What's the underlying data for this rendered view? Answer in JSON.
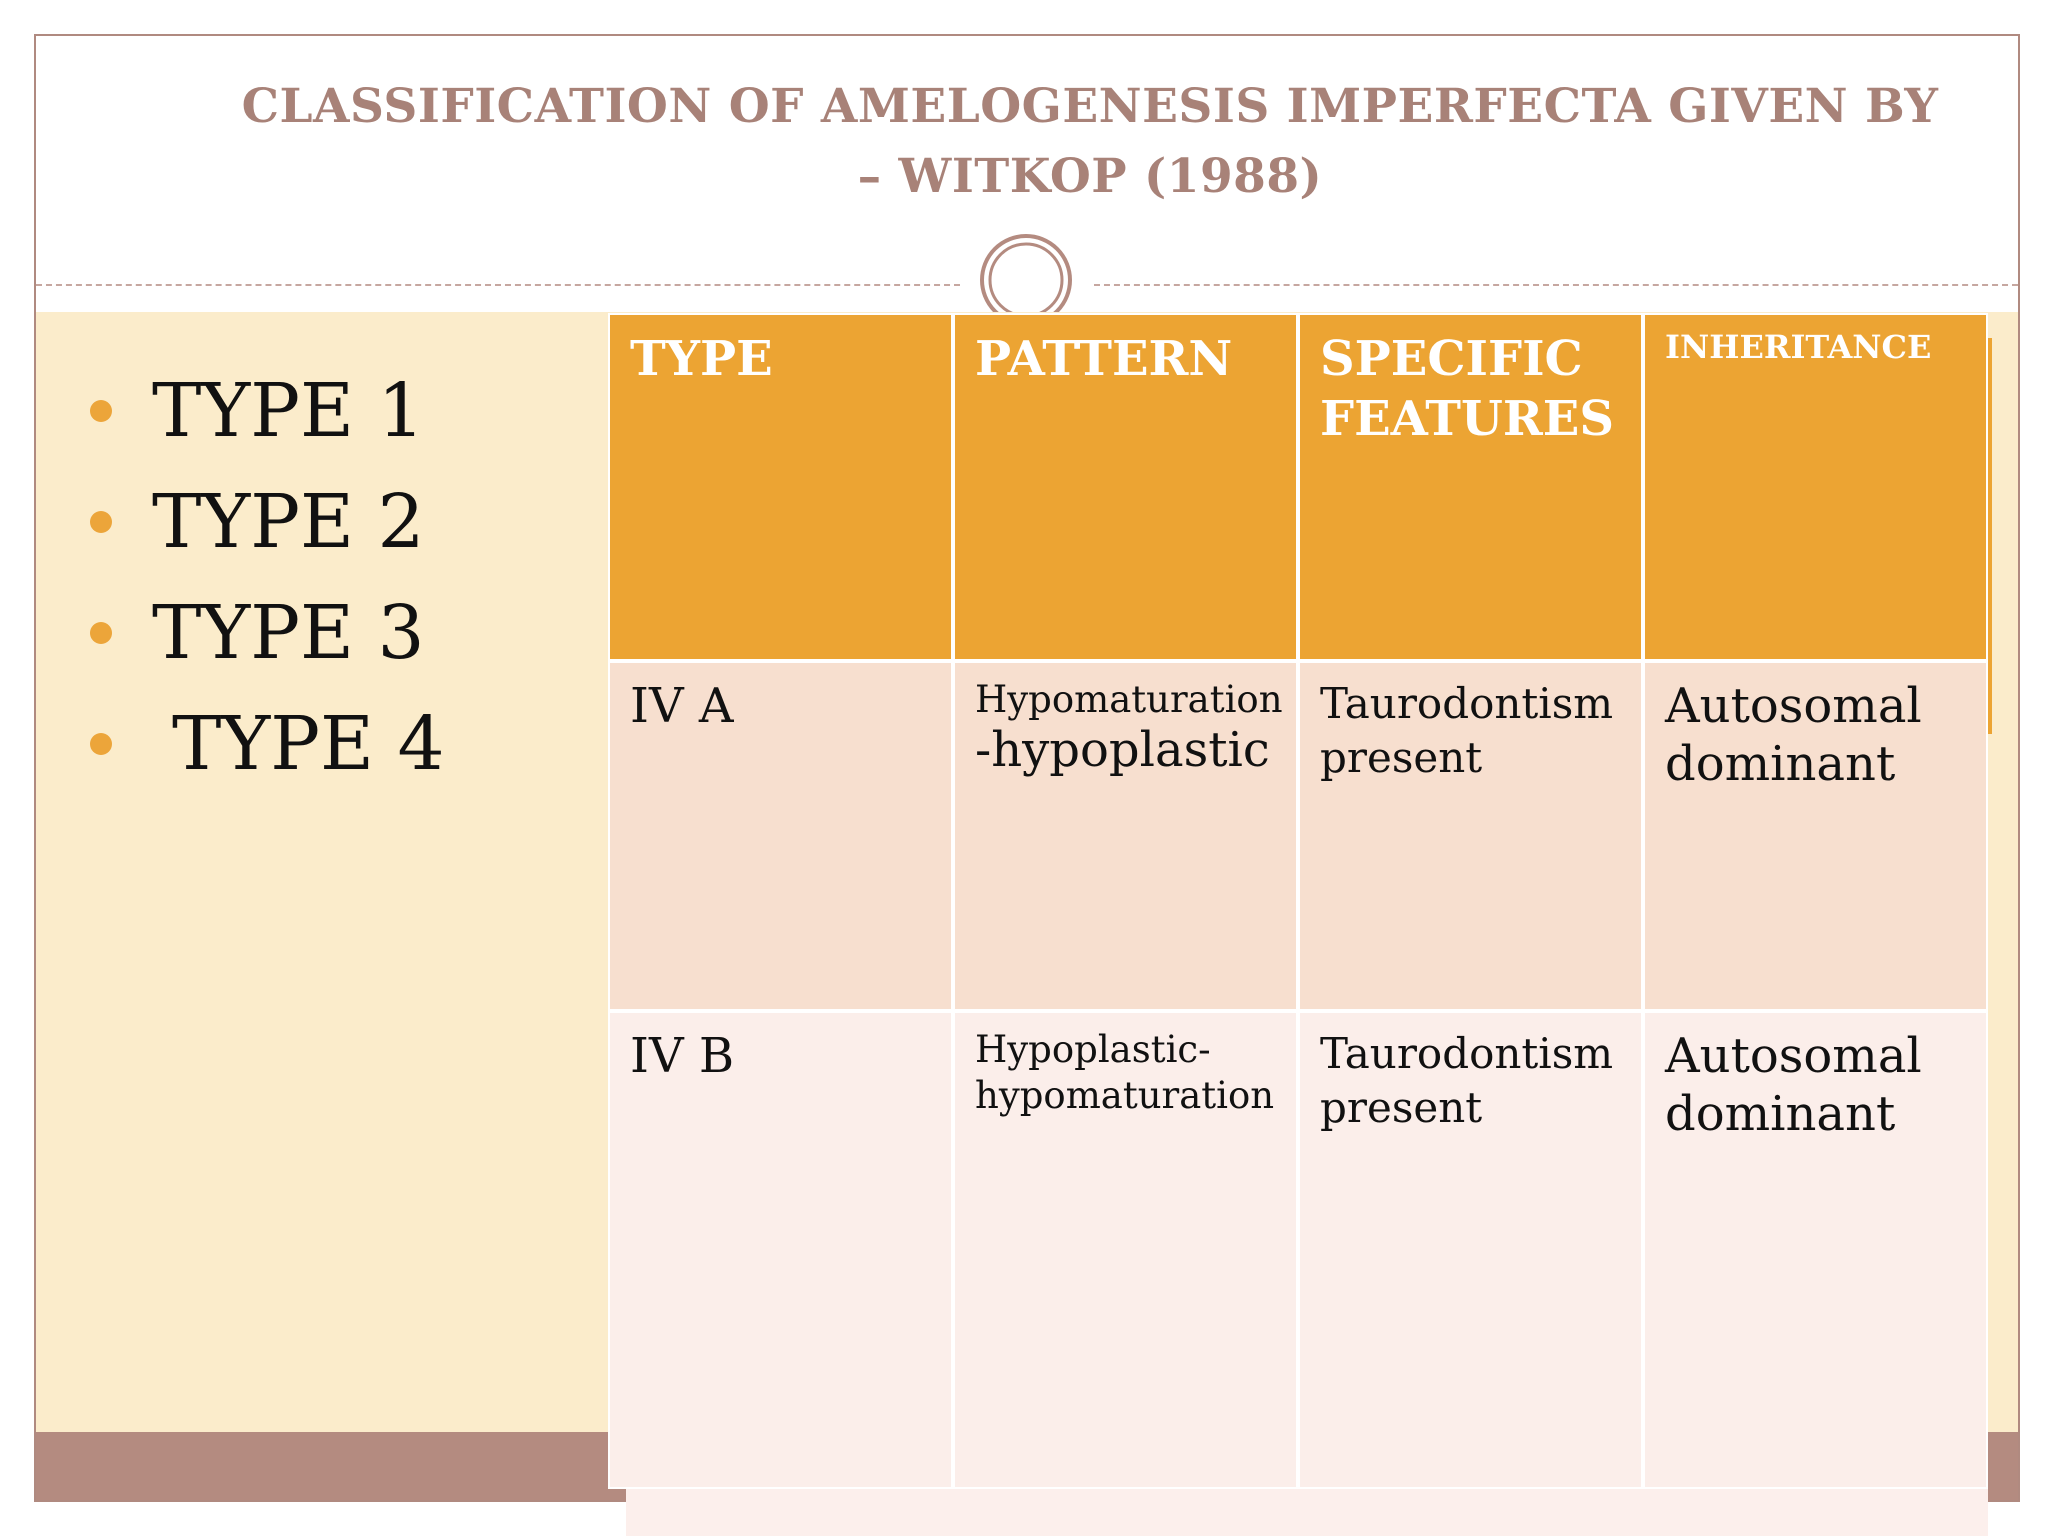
{
  "slide": {
    "title_line1": "CLASSIFICATION OF AMELOGENESIS IMPERFECTA GIVEN BY",
    "title_line2": "– WITKOP (1988)",
    "colors": {
      "title": "#a88278",
      "header_fill": "#eca433",
      "row1_fill": "#f7dfcf",
      "row2_fill": "#fbeeea",
      "left_panel": "#fbeccb",
      "footer_band": "#b48b80",
      "bullet": "#eca53a"
    }
  },
  "bullets": [
    {
      "label": "TYPE 1"
    },
    {
      "label": "TYPE 2"
    },
    {
      "label": "TYPE 3"
    },
    {
      "label": "TYPE 4"
    }
  ],
  "table": {
    "headers": [
      "TYPE",
      "PATTERN",
      "SPECIFIC FEATURES",
      "INHERITANCE"
    ],
    "rows": [
      {
        "type": "IV A",
        "pattern": "Hypomaturation",
        "pattern2": "-hypoplastic",
        "features": "Taurodontism present",
        "inheritance": "Autosomal dominant"
      },
      {
        "type": "IV B",
        "pattern": "Hypoplastic-",
        "pattern2": "hypomaturation",
        "features": "Taurodontism present",
        "inheritance": "Autosomal dominant"
      }
    ]
  }
}
